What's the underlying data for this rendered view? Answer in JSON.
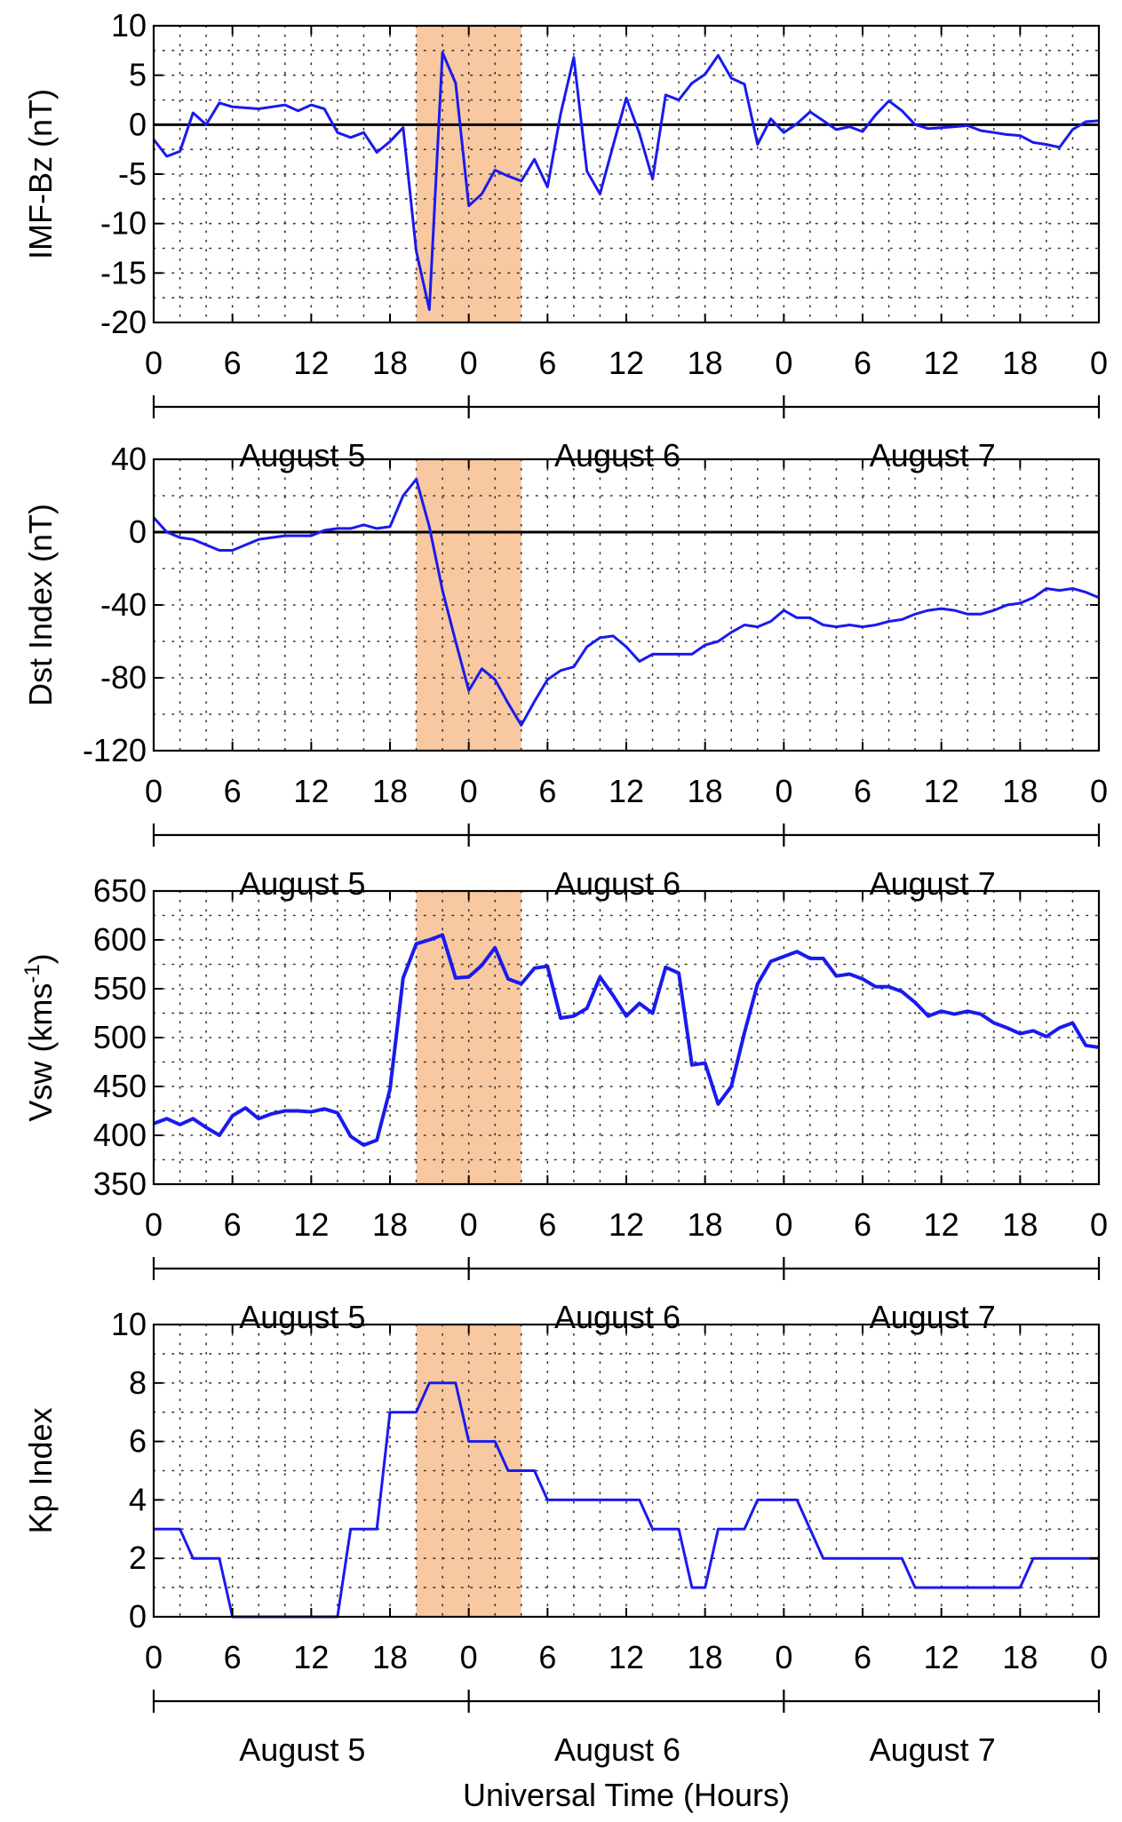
{
  "figure": {
    "xlabel": "Universal Time (Hours)",
    "highlight_color": "#f8c8a0",
    "line_color": "#1a1aee",
    "x_tick_labels": [
      "0",
      "6",
      "12",
      "18",
      "0",
      "6",
      "12",
      "18",
      "0",
      "6",
      "12",
      "18",
      "0"
    ],
    "days": [
      "August 5",
      "August 6",
      "August 7"
    ]
  },
  "chart_data": [
    {
      "type": "line",
      "title": "",
      "xlabel": "",
      "ylabel": "IMF-Bz (nT)",
      "xlim": [
        0,
        72
      ],
      "ylim": [
        -20,
        10
      ],
      "y_ticks": [
        -20,
        -15,
        -10,
        -5,
        0,
        5,
        10
      ],
      "zero_line": true,
      "highlight_x": [
        20,
        28
      ],
      "series": [
        {
          "x": [
            0,
            1,
            2,
            3,
            4,
            5,
            6,
            7,
            8,
            9,
            10,
            11,
            12,
            13,
            14,
            15,
            16,
            17,
            18,
            19,
            20,
            21,
            22,
            23,
            24,
            25,
            26,
            27,
            28,
            29,
            30,
            31,
            32,
            33,
            34,
            35,
            36,
            37,
            38,
            39,
            40,
            41,
            42,
            43,
            44,
            45,
            46,
            47,
            48,
            49,
            50,
            51,
            52,
            53,
            54,
            55,
            56,
            57,
            58,
            59,
            60,
            61,
            62,
            63,
            64,
            65,
            66,
            67,
            68,
            69,
            70,
            71,
            72
          ],
          "values": [
            -1.5,
            -3.2,
            -2.7,
            1.2,
            0.0,
            2.2,
            1.8,
            1.7,
            1.6,
            1.8,
            2.0,
            1.4,
            2.0,
            1.6,
            -0.8,
            -1.3,
            -0.8,
            -2.8,
            -1.7,
            -0.3,
            -12.8,
            -18.7,
            7.3,
            4.2,
            -8.2,
            -7.0,
            -4.6,
            -5.2,
            -5.7,
            -3.5,
            -6.3,
            1.1,
            6.8,
            -4.7,
            -7.0,
            -2.1,
            2.7,
            -0.9,
            -5.5,
            3.0,
            2.5,
            4.2,
            5.1,
            7.0,
            4.7,
            4.1,
            -2.0,
            0.6,
            -0.8,
            0.1,
            1.3,
            0.4,
            -0.5,
            -0.2,
            -0.7,
            1.0,
            2.4,
            1.4,
            0.0,
            -0.4,
            -0.3,
            -0.2,
            -0.1,
            -0.6,
            -0.8,
            -1.0,
            -1.1,
            -1.8,
            -2.0,
            -2.3,
            -0.5,
            0.3,
            0.4
          ]
        }
      ]
    },
    {
      "type": "line",
      "title": "",
      "xlabel": "",
      "ylabel": "Dst Index (nT)",
      "xlim": [
        0,
        72
      ],
      "ylim": [
        -120,
        40
      ],
      "y_ticks": [
        -120,
        -80,
        -40,
        0,
        40
      ],
      "zero_line": true,
      "highlight_x": [
        20,
        28
      ],
      "series": [
        {
          "x": [
            0,
            1,
            2,
            3,
            4,
            5,
            6,
            7,
            8,
            9,
            10,
            11,
            12,
            13,
            14,
            15,
            16,
            17,
            18,
            19,
            20,
            21,
            22,
            23,
            24,
            25,
            26,
            27,
            28,
            29,
            30,
            31,
            32,
            33,
            34,
            35,
            36,
            37,
            38,
            39,
            40,
            41,
            42,
            43,
            44,
            45,
            46,
            47,
            48,
            49,
            50,
            51,
            52,
            53,
            54,
            55,
            56,
            57,
            58,
            59,
            60,
            61,
            62,
            63,
            64,
            65,
            66,
            67,
            68,
            69,
            70,
            71,
            72
          ],
          "values": [
            8,
            0,
            -3,
            -4,
            -7,
            -10,
            -10,
            -7,
            -4,
            -3,
            -2,
            -2,
            -2,
            1,
            2,
            2,
            4,
            2,
            3,
            20,
            29,
            3,
            -32,
            -60,
            -87,
            -75,
            -81,
            -94,
            -106,
            -93,
            -81,
            -76,
            -74,
            -63,
            -58,
            -57,
            -63,
            -71,
            -67,
            -67,
            -67,
            -67,
            -62,
            -60,
            -55,
            -51,
            -52,
            -49,
            -43,
            -47,
            -47,
            -51,
            -52,
            -51,
            -52,
            -51,
            -49,
            -48,
            -45,
            -43,
            -42,
            -43,
            -45,
            -45,
            -43,
            -40,
            -39,
            -36,
            -31,
            -32,
            -31,
            -33,
            -36
          ]
        }
      ]
    },
    {
      "type": "line",
      "title": "",
      "xlabel": "",
      "ylabel": "Vsw (kms",
      "ylabel_sup": "-1",
      "ylabel_close": ")",
      "xlim": [
        0,
        72
      ],
      "ylim": [
        350,
        650
      ],
      "y_ticks": [
        350,
        400,
        450,
        500,
        550,
        600,
        650
      ],
      "zero_line": false,
      "highlight_x": [
        20,
        28
      ],
      "series": [
        {
          "x": [
            0,
            1,
            2,
            3,
            4,
            5,
            6,
            7,
            8,
            9,
            10,
            11,
            12,
            13,
            14,
            15,
            16,
            17,
            18,
            19,
            20,
            21,
            22,
            23,
            24,
            25,
            26,
            27,
            28,
            29,
            30,
            31,
            32,
            33,
            34,
            35,
            36,
            37,
            38,
            39,
            40,
            41,
            42,
            43,
            44,
            45,
            46,
            47,
            48,
            49,
            50,
            51,
            52,
            53,
            54,
            55,
            56,
            57,
            58,
            59,
            60,
            61,
            62,
            63,
            64,
            65,
            66,
            67,
            68,
            69,
            70,
            71,
            72
          ],
          "values": [
            412,
            417,
            411,
            417,
            408,
            400,
            420,
            428,
            417,
            422,
            425,
            425,
            424,
            427,
            423,
            399,
            390,
            395,
            447,
            561,
            596,
            600,
            605,
            561,
            562,
            574,
            592,
            560,
            555,
            571,
            573,
            520,
            522,
            530,
            562,
            543,
            522,
            535,
            525,
            572,
            566,
            472,
            474,
            432,
            450,
            505,
            555,
            578,
            583,
            588,
            581,
            581,
            563,
            565,
            560,
            552,
            552,
            547,
            536,
            522,
            527,
            524,
            527,
            524,
            515,
            510,
            504,
            507,
            501,
            510,
            515,
            492,
            490
          ]
        }
      ]
    },
    {
      "type": "line",
      "title": "",
      "xlabel": "",
      "ylabel": "Kp Index",
      "xlim": [
        0,
        72
      ],
      "ylim": [
        0,
        10
      ],
      "y_ticks": [
        0,
        2,
        4,
        6,
        8,
        10
      ],
      "zero_line": false,
      "highlight_x": [
        20,
        28
      ],
      "series": [
        {
          "x": [
            0,
            2,
            3,
            5,
            6,
            14,
            15,
            17,
            18,
            20,
            21,
            23,
            24,
            26,
            27,
            28,
            29,
            30,
            31,
            37,
            38,
            40,
            41,
            42,
            43,
            45,
            46,
            48,
            49,
            51,
            52,
            57,
            58,
            61,
            62,
            66,
            67,
            72
          ],
          "values": [
            3,
            3,
            2,
            2,
            0,
            0,
            3,
            3,
            7,
            7,
            8,
            8,
            6,
            6,
            5,
            5,
            5,
            4,
            4,
            4,
            3,
            3,
            1,
            1,
            3,
            3,
            4,
            4,
            4,
            2,
            2,
            2,
            1,
            1,
            1,
            1,
            2,
            2
          ]
        }
      ]
    }
  ]
}
